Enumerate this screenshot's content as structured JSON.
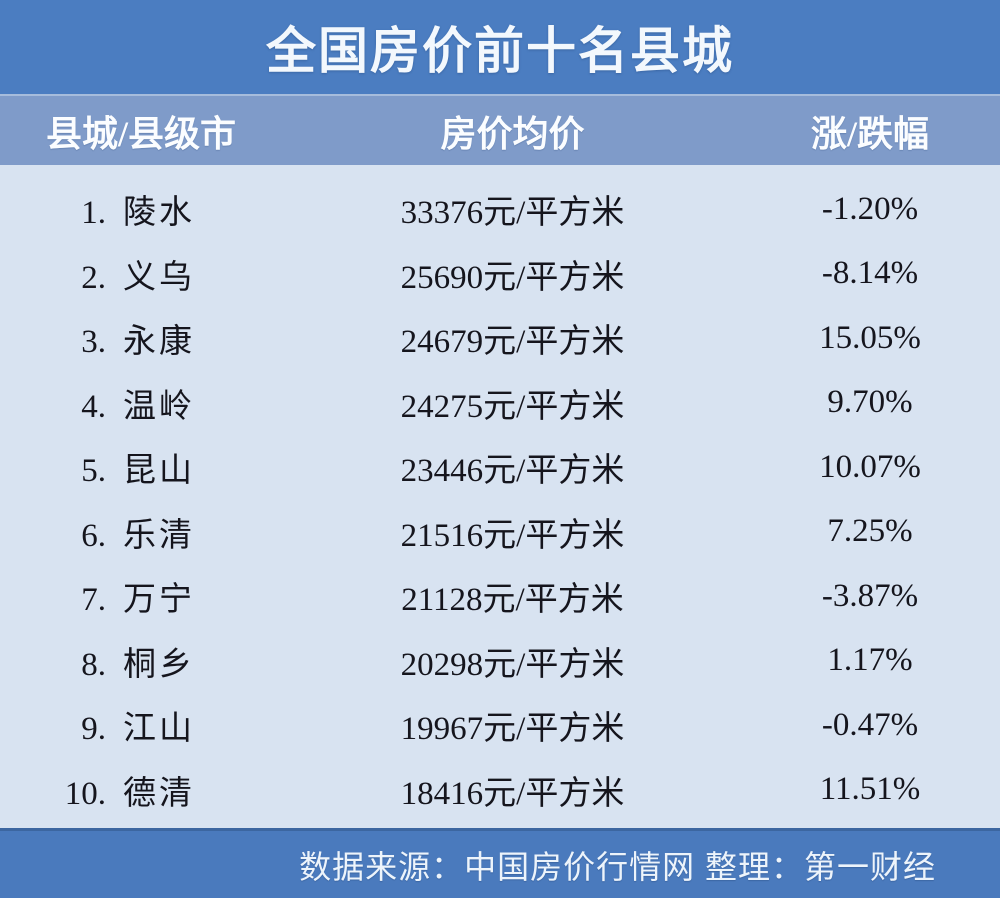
{
  "title": "全国房价前十名县城",
  "colors": {
    "title_bar_bg": "#4B7DC1",
    "header_bg": "#7F9BC9",
    "body_bg": "#D8E3F1",
    "footer_bg": "#4A7ABD",
    "heading_text": "#F3F8FD",
    "body_text": "#15151D"
  },
  "table": {
    "columns": {
      "county": "县城/县级市",
      "price": "房价均价",
      "change": "涨/跌幅"
    },
    "rows": [
      {
        "rank": "1.",
        "name": "陵水",
        "price": "33376元/平方米",
        "change": "-1.20%"
      },
      {
        "rank": "2.",
        "name": "义乌",
        "price": "25690元/平方米",
        "change": "-8.14%"
      },
      {
        "rank": "3.",
        "name": "永康",
        "price": "24679元/平方米",
        "change": "15.05%"
      },
      {
        "rank": "4.",
        "name": "温岭",
        "price": "24275元/平方米",
        "change": "9.70%"
      },
      {
        "rank": "5.",
        "name": "昆山",
        "price": "23446元/平方米",
        "change": "10.07%"
      },
      {
        "rank": "6.",
        "name": "乐清",
        "price": "21516元/平方米",
        "change": "7.25%"
      },
      {
        "rank": "7.",
        "name": "万宁",
        "price": "21128元/平方米",
        "change": "-3.87%"
      },
      {
        "rank": "8.",
        "name": "桐乡",
        "price": "20298元/平方米",
        "change": "1.17%"
      },
      {
        "rank": "9.",
        "name": "江山",
        "price": "19967元/平方米",
        "change": "-0.47%"
      },
      {
        "rank": "10.",
        "name": "德清",
        "price": "18416元/平方米",
        "change": "11.51%"
      }
    ]
  },
  "footer": {
    "source_text": "数据来源：中国房价行情网 整理：第一财经"
  },
  "chart_data": {
    "type": "table",
    "title": "全国房价前十名县城",
    "columns": [
      "县城/县级市",
      "房价均价",
      "涨/跌幅"
    ],
    "ranks": [
      1,
      2,
      3,
      4,
      5,
      6,
      7,
      8,
      9,
      10
    ],
    "counties": [
      "陵水",
      "义乌",
      "永康",
      "温岭",
      "昆山",
      "乐清",
      "万宁",
      "桐乡",
      "江山",
      "德清"
    ],
    "avg_price_yuan_per_sqm": [
      33376,
      25690,
      24679,
      24275,
      23446,
      21516,
      21128,
      20298,
      19967,
      18416
    ],
    "change_percent": [
      -1.2,
      -8.14,
      15.05,
      9.7,
      10.07,
      7.25,
      -3.87,
      1.17,
      -0.47,
      11.51
    ],
    "price_unit": "元/平方米",
    "source": "中国房价行情网",
    "compiled_by": "第一财经"
  }
}
